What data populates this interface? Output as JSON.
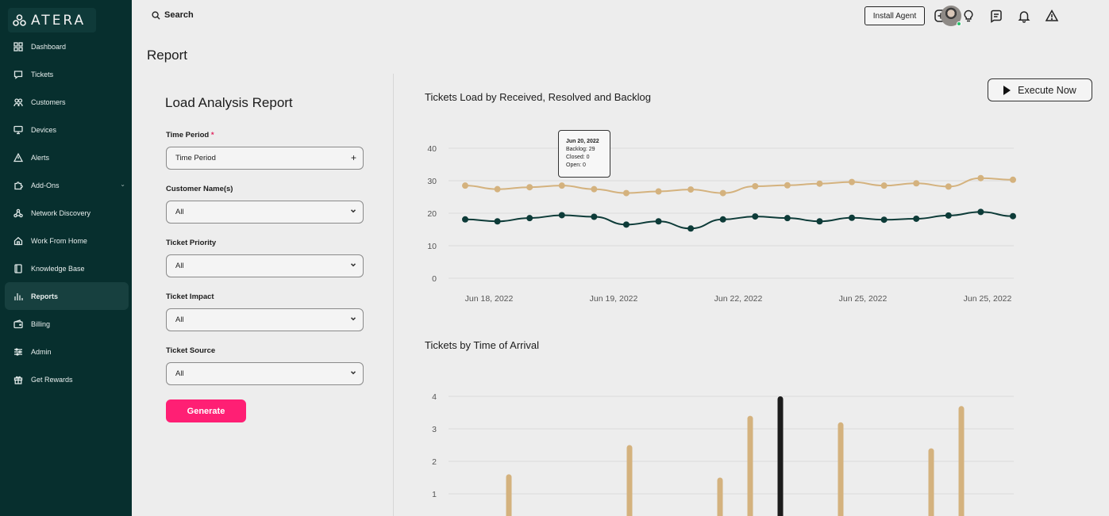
{
  "brand": {
    "logo_text": "ATERA"
  },
  "sidebar": {
    "items": [
      {
        "label": "Dashboard",
        "icon": "grid-icon"
      },
      {
        "label": "Tickets",
        "icon": "ticket-icon"
      },
      {
        "label": "Customers",
        "icon": "users-icon"
      },
      {
        "label": "Devices",
        "icon": "monitor-icon"
      },
      {
        "label": "Alerts",
        "icon": "warning-icon"
      },
      {
        "label": "Add-Ons",
        "icon": "puzzle-icon"
      },
      {
        "label": "Network Discovery",
        "icon": "network-icon"
      },
      {
        "label": "Work From Home",
        "icon": "home-icon"
      },
      {
        "label": "Knowledge Base",
        "icon": "book-icon"
      },
      {
        "label": "Reports",
        "icon": "bar-chart-icon"
      },
      {
        "label": "Billing",
        "icon": "wallet-icon"
      },
      {
        "label": "Admin",
        "icon": "sliders-icon"
      },
      {
        "label": "Get Rewards",
        "icon": "gift-icon"
      }
    ],
    "active": "Reports"
  },
  "topbar": {
    "search_label": "Search",
    "install_label": "Install Agent",
    "icons": [
      "plus-square-icon",
      "lightbulb-icon",
      "chat-icon",
      "bell-icon",
      "warning-icon"
    ]
  },
  "page": {
    "title": "Report"
  },
  "form": {
    "title": "Load Analysis Report",
    "fields": [
      {
        "label": "Time Period",
        "required": true,
        "value": "Time Period"
      },
      {
        "label": "Customer Name(s)",
        "value": "All"
      },
      {
        "label": "Ticket Priority",
        "value": "All"
      },
      {
        "label": "Ticket Impact",
        "value": "All"
      },
      {
        "label": "Ticket Source",
        "value": "All"
      }
    ],
    "required_mark": "*",
    "generate_label": "Generate"
  },
  "execute_label": "Execute Now",
  "tooltip": {
    "title": "Jun 20, 2022",
    "lines": [
      "Backlog: 29",
      "Closed: 0",
      "Open: 0"
    ]
  },
  "colors": {
    "backlog": "#d4b27e",
    "resolved": "#0d3b38",
    "bar": "#d4b27e",
    "bar_highlight": "#1c1c1c",
    "accent": "#ff1f74"
  },
  "chart_data": [
    {
      "type": "line",
      "title": "Tickets Load by Received, Resolved and Backlog",
      "x_ticks": [
        "Jun 18, 2022",
        "Jun 19, 2022",
        "Jun 22, 2022",
        "Jun 25, 2022",
        "Jun 25, 2022"
      ],
      "y_ticks": [
        0,
        10,
        20,
        30,
        40
      ],
      "ylim": [
        0,
        40
      ],
      "grid": true,
      "series": [
        {
          "key": "backlog",
          "values": [
            28.5,
            27.4,
            28,
            28.5,
            27.4,
            26.2,
            26.7,
            27.3,
            26.2,
            28.3,
            28.6,
            29.1,
            29.6,
            28.5,
            29.2,
            28.2,
            30.8,
            30.3
          ]
        },
        {
          "key": "resolved",
          "values": [
            18.1,
            17.5,
            18.5,
            19.4,
            18.9,
            16.5,
            17.5,
            15.3,
            18.1,
            19,
            18.5,
            17.5,
            18.6,
            18,
            18.3,
            19.3,
            20.4,
            19.1
          ]
        }
      ]
    },
    {
      "type": "bar",
      "title": "Tickets by Time of Arrival",
      "y_ticks": [
        1,
        2,
        3,
        4
      ],
      "grid": true,
      "values": [
        0,
        1.6,
        0,
        0,
        0,
        2.5,
        0,
        0,
        1.5,
        3.4,
        4,
        0,
        3.2,
        0,
        0,
        2.4,
        3.7
      ],
      "highlight_index": 10
    }
  ]
}
